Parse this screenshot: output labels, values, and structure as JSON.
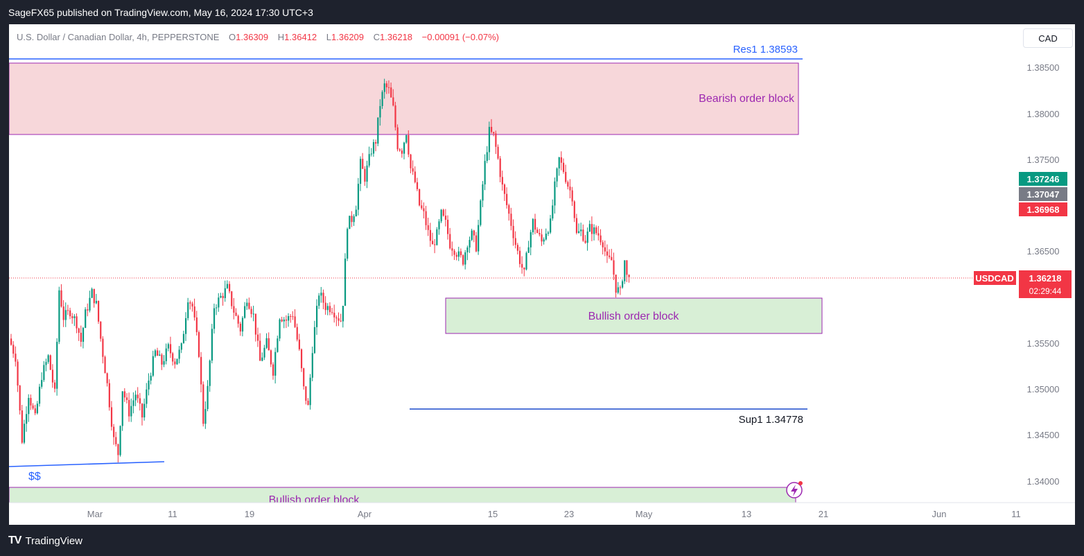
{
  "header": {
    "title": "SageFX65 published on TradingView.com, May 16, 2024 17:30 UTC+3"
  },
  "symbol_info": {
    "name": "U.S. Dollar / Canadian Dollar, 4h, PEPPERSTONE",
    "open_label": "O",
    "open": "1.36309",
    "high_label": "H",
    "high": "1.36412",
    "low_label": "L",
    "low": "1.36209",
    "close_label": "C",
    "close": "1.36218",
    "change": "−0.00091 (−0.07%)"
  },
  "currency_button": "CAD",
  "footer": {
    "logo": "TV",
    "brand": "TradingView"
  },
  "colors": {
    "up": "#089981",
    "down": "#f23645",
    "bearish_zone": "#f7d7da",
    "bullish_zone": "#d8efd6",
    "zone_label": "#9c27b0",
    "level_line": "#2962ff"
  },
  "chart_data": {
    "type": "candlestick",
    "symbol": "USDCAD",
    "timeframe": "4h",
    "y_ticks": [
      "1.38500",
      "1.38000",
      "1.37500",
      "1.36500",
      "1.35500",
      "1.35000",
      "1.34500",
      "1.34000"
    ],
    "x_ticks": [
      "Mar",
      "11",
      "19",
      "Apr",
      "15",
      "23",
      "May",
      "13",
      "21",
      "Jun",
      "11"
    ],
    "price_badges": [
      {
        "label": "1.37246",
        "color": "#089981"
      },
      {
        "label": "1.37047",
        "color": "#787b86"
      },
      {
        "label": "1.36968",
        "color": "#f23645"
      }
    ],
    "last_price": {
      "symbol": "USDCAD",
      "price": "1.36218",
      "countdown": "02:29:44"
    },
    "levels": [
      {
        "label": "Res1 1.38593"
      },
      {
        "label": "Sup1 1.34778"
      }
    ],
    "zones": [
      {
        "label": "Bearish order block"
      },
      {
        "label": "Bullish order block"
      },
      {
        "label": "Bullish order block"
      }
    ],
    "annotation": "$$",
    "price_path": [
      [
        0,
        1.3555
      ],
      [
        3,
        1.3535
      ],
      [
        6,
        1.3445
      ],
      [
        9,
        1.3495
      ],
      [
        12,
        1.3468
      ],
      [
        15,
        1.3515
      ],
      [
        18,
        1.3535
      ],
      [
        21,
        1.3495
      ],
      [
        23,
        1.3608
      ],
      [
        25,
        1.3578
      ],
      [
        28,
        1.3585
      ],
      [
        31,
        1.3572
      ],
      [
        33,
        1.3552
      ],
      [
        35,
        1.3582
      ],
      [
        38,
        1.3605
      ],
      [
        40,
        1.3592
      ],
      [
        42,
        1.3555
      ],
      [
        45,
        1.3505
      ],
      [
        48,
        1.3445
      ],
      [
        50,
        1.343
      ],
      [
        52,
        1.35
      ],
      [
        55,
        1.3475
      ],
      [
        58,
        1.3495
      ],
      [
        61,
        1.347
      ],
      [
        64,
        1.351
      ],
      [
        67,
        1.354
      ],
      [
        70,
        1.3528
      ],
      [
        73,
        1.3545
      ],
      [
        76,
        1.353
      ],
      [
        79,
        1.3545
      ],
      [
        82,
        1.36
      ],
      [
        84,
        1.359
      ],
      [
        87,
        1.354
      ],
      [
        89,
        1.3465
      ],
      [
        91,
        1.35
      ],
      [
        94,
        1.359
      ],
      [
        97,
        1.36
      ],
      [
        100,
        1.361
      ],
      [
        103,
        1.3585
      ],
      [
        106,
        1.3565
      ],
      [
        109,
        1.36
      ],
      [
        112,
        1.358
      ],
      [
        115,
        1.353
      ],
      [
        118,
        1.355
      ],
      [
        121,
        1.352
      ],
      [
        124,
        1.358
      ],
      [
        127,
        1.3575
      ],
      [
        130,
        1.3582
      ],
      [
        133,
        1.354
      ],
      [
        135,
        1.35
      ],
      [
        137,
        1.348
      ],
      [
        139,
        1.3545
      ],
      [
        142,
        1.3605
      ],
      [
        145,
        1.359
      ],
      [
        148,
        1.3588
      ],
      [
        150,
        1.358
      ],
      [
        152,
        1.3575
      ],
      [
        153,
        1.3595
      ],
      [
        155,
        1.368
      ],
      [
        157,
        1.3685
      ],
      [
        159,
        1.37
      ],
      [
        161,
        1.3745
      ],
      [
        163,
        1.373
      ],
      [
        166,
        1.376
      ],
      [
        168,
        1.377
      ],
      [
        170,
        1.381
      ],
      [
        172,
        1.383
      ],
      [
        174,
        1.3825
      ],
      [
        176,
        1.3805
      ],
      [
        178,
        1.3765
      ],
      [
        180,
        1.376
      ],
      [
        182,
        1.378
      ],
      [
        184,
        1.374
      ],
      [
        186,
        1.3725
      ],
      [
        188,
        1.37
      ],
      [
        190,
        1.369
      ],
      [
        192,
        1.367
      ],
      [
        194,
        1.3655
      ],
      [
        196,
        1.3668
      ],
      [
        198,
        1.369
      ],
      [
        200,
        1.368
      ],
      [
        202,
        1.3658
      ],
      [
        204,
        1.3652
      ],
      [
        206,
        1.3645
      ],
      [
        208,
        1.364
      ],
      [
        210,
        1.366
      ],
      [
        212,
        1.3668
      ],
      [
        214,
        1.3655
      ],
      [
        216,
        1.37
      ],
      [
        218,
        1.3745
      ],
      [
        220,
        1.378
      ],
      [
        222,
        1.3775
      ],
      [
        224,
        1.375
      ],
      [
        226,
        1.372
      ],
      [
        228,
        1.37
      ],
      [
        230,
        1.368
      ],
      [
        232,
        1.3658
      ],
      [
        234,
        1.364
      ],
      [
        236,
        1.3625
      ],
      [
        238,
        1.366
      ],
      [
        240,
        1.3682
      ],
      [
        242,
        1.367
      ],
      [
        244,
        1.366
      ],
      [
        246,
        1.3672
      ],
      [
        248,
        1.368
      ],
      [
        250,
        1.372
      ],
      [
        252,
        1.375
      ],
      [
        254,
        1.3738
      ],
      [
        256,
        1.3722
      ],
      [
        258,
        1.371
      ],
      [
        260,
        1.3668
      ],
      [
        262,
        1.3672
      ],
      [
        264,
        1.3662
      ],
      [
        266,
        1.3675
      ],
      [
        268,
        1.3672
      ],
      [
        270,
        1.3668
      ],
      [
        272,
        1.366
      ],
      [
        274,
        1.364
      ],
      [
        276,
        1.364
      ],
      [
        278,
        1.361
      ],
      [
        280,
        1.3605
      ],
      [
        282,
        1.364
      ],
      [
        283,
        1.3622
      ]
    ]
  }
}
